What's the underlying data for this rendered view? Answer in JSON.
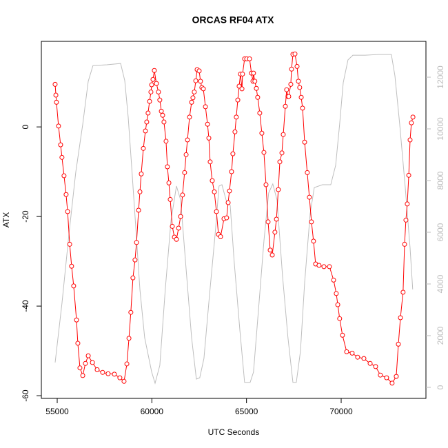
{
  "chart_data": {
    "type": "line",
    "title": "ORCAS RF04 ATX",
    "xlabel": "UTC Seconds",
    "ylabel": "ATX",
    "xlim": [
      54163,
      74478
    ],
    "xticks": [
      55000,
      60000,
      65000,
      70000
    ],
    "ylim": [
      -60.6,
      19.1
    ],
    "yticks": [
      0,
      -20,
      -40,
      -60
    ],
    "y2lim": [
      -427,
      13387
    ],
    "y2ticks": [
      0,
      2000,
      4000,
      6000,
      8000,
      10000,
      12000
    ],
    "series": [
      {
        "color": "#bebebe",
        "axis": "y2",
        "markers": false,
        "x": [
          54890,
          55250,
          55620,
          55980,
          56350,
          56640,
          56890,
          57620,
          58350,
          58570,
          58750,
          58930,
          59150,
          59370,
          59620,
          59990,
          60170,
          60420,
          60710,
          61010,
          61300,
          61520,
          61810,
          62100,
          62350,
          62530,
          62750,
          63040,
          63340,
          63550,
          63700,
          63920,
          64140,
          64350,
          64650,
          64900,
          65190,
          65370,
          65630,
          65920,
          66170,
          66390,
          66610,
          66900,
          67190,
          67450,
          67630,
          67850,
          68070,
          68360,
          68580,
          69010,
          69450,
          69710,
          69920,
          70110,
          70360,
          70620,
          71270,
          72000,
          72650,
          72840,
          73090,
          73380,
          73640,
          73780
        ],
        "values": [
          960,
          3250,
          5920,
          8320,
          10190,
          11840,
          12450,
          12480,
          12530,
          11870,
          10450,
          8590,
          6190,
          3790,
          1920,
          590,
          160,
          850,
          3790,
          6450,
          7790,
          7250,
          4590,
          1920,
          320,
          370,
          1120,
          3520,
          5920,
          7790,
          7840,
          7250,
          7040,
          4850,
          2190,
          190,
          190,
          590,
          2990,
          5650,
          7520,
          7870,
          7250,
          4320,
          1920,
          190,
          190,
          1390,
          4050,
          6720,
          7730,
          7840,
          7840,
          8590,
          10190,
          11790,
          12670,
          12850,
          12850,
          12880,
          12880,
          12050,
          10190,
          7790,
          5390,
          3790
        ]
      },
      {
        "color": "#ff0000",
        "axis": "y",
        "markers": true,
        "x": [
          54890,
          54930,
          54960,
          55070,
          55180,
          55250,
          55360,
          55470,
          55550,
          55660,
          55760,
          55870,
          56020,
          56090,
          56200,
          56350,
          56490,
          56640,
          56860,
          57110,
          57400,
          57690,
          58020,
          58310,
          58530,
          58680,
          58790,
          58890,
          59000,
          59110,
          59190,
          59300,
          59370,
          59440,
          59550,
          59660,
          59730,
          59800,
          59880,
          59950,
          59990,
          60060,
          60130,
          60240,
          60350,
          60420,
          60500,
          60570,
          60640,
          60750,
          60820,
          60900,
          60970,
          61080,
          61190,
          61300,
          61410,
          61520,
          61620,
          61730,
          61810,
          61880,
          61990,
          62100,
          62170,
          62240,
          62320,
          62390,
          62500,
          62570,
          62640,
          62720,
          62830,
          62940,
          63010,
          63080,
          63190,
          63300,
          63410,
          63520,
          63630,
          63810,
          63950,
          64030,
          64100,
          64210,
          64280,
          64390,
          64460,
          64540,
          64610,
          64680,
          64760,
          64790,
          64900,
          65010,
          65160,
          65260,
          65340,
          65370,
          65440,
          65520,
          65590,
          65700,
          65810,
          65920,
          66030,
          66140,
          66250,
          66360,
          66500,
          66580,
          66680,
          66760,
          66870,
          66940,
          67050,
          67120,
          67190,
          67230,
          67340,
          67380,
          67450,
          67560,
          67670,
          67740,
          67810,
          67890,
          67960,
          68070,
          68210,
          68320,
          68430,
          68540,
          68650,
          68830,
          69090,
          69380,
          69600,
          69740,
          69820,
          69920,
          70070,
          70290,
          70580,
          70870,
          71200,
          71530,
          71820,
          72070,
          72400,
          72690,
          72910,
          73020,
          73130,
          73270,
          73350,
          73420,
          73490,
          73570,
          73640,
          73710,
          73790
        ],
        "values": [
          9.5,
          7.1,
          5.5,
          0.2,
          -4,
          -6.8,
          -10.9,
          -15.1,
          -18.9,
          -26.2,
          -31.1,
          -35.5,
          -43.1,
          -48.3,
          -53.8,
          -55.5,
          -52.8,
          -51.1,
          -52.6,
          -54.2,
          -54.8,
          -55.1,
          -55.2,
          -56,
          -56.8,
          -52.9,
          -47.2,
          -41.4,
          -33.7,
          -29.7,
          -25.8,
          -18.6,
          -14.5,
          -10.5,
          -4.8,
          -0.9,
          1.1,
          3.1,
          5.7,
          7.8,
          9.4,
          10.6,
          12.6,
          9.7,
          7.8,
          6,
          3.5,
          2.6,
          1.1,
          -3.2,
          -8.9,
          -12.5,
          -16.2,
          -22.2,
          -24.6,
          -25.1,
          -22.6,
          -20,
          -15.2,
          -10.2,
          -6.2,
          -2.9,
          2.2,
          5.5,
          6.5,
          7.8,
          10.3,
          12.8,
          12.5,
          10.2,
          8.8,
          8.5,
          4.5,
          0.6,
          -2.5,
          -7.8,
          -12,
          -14.5,
          -18.9,
          -24,
          -24.5,
          -20.5,
          -20.3,
          -16.9,
          -14.3,
          -10,
          -6,
          -1.1,
          2.2,
          6,
          9.1,
          11.8,
          8.5,
          11.8,
          15.2,
          15.2,
          15.2,
          12,
          10.2,
          12,
          10.2,
          8.6,
          6.6,
          3.1,
          -1.4,
          -5.7,
          -12.9,
          -21.2,
          -27.5,
          -28.6,
          -23.5,
          -20.6,
          -14,
          -7.8,
          -5.8,
          -1.7,
          4.6,
          8.3,
          6.8,
          6.8,
          9.5,
          12.9,
          16.2,
          16.3,
          13.5,
          10.2,
          8.8,
          6.6,
          4.2,
          -3.4,
          -10.2,
          -15.7,
          -21.2,
          -25.5,
          -30.6,
          -30.9,
          -31.2,
          -31.2,
          -34.2,
          -37.2,
          -39.7,
          -42.8,
          -46.5,
          -50.2,
          -50.5,
          -51.4,
          -51.7,
          -52.8,
          -53.5,
          -55.4,
          -56,
          -57.2,
          -55.7,
          -48.5,
          -42.6,
          -36.9,
          -26.2,
          -20.8,
          -17.2,
          -10.8,
          -2.9,
          0.9,
          2.2
        ]
      }
    ]
  }
}
